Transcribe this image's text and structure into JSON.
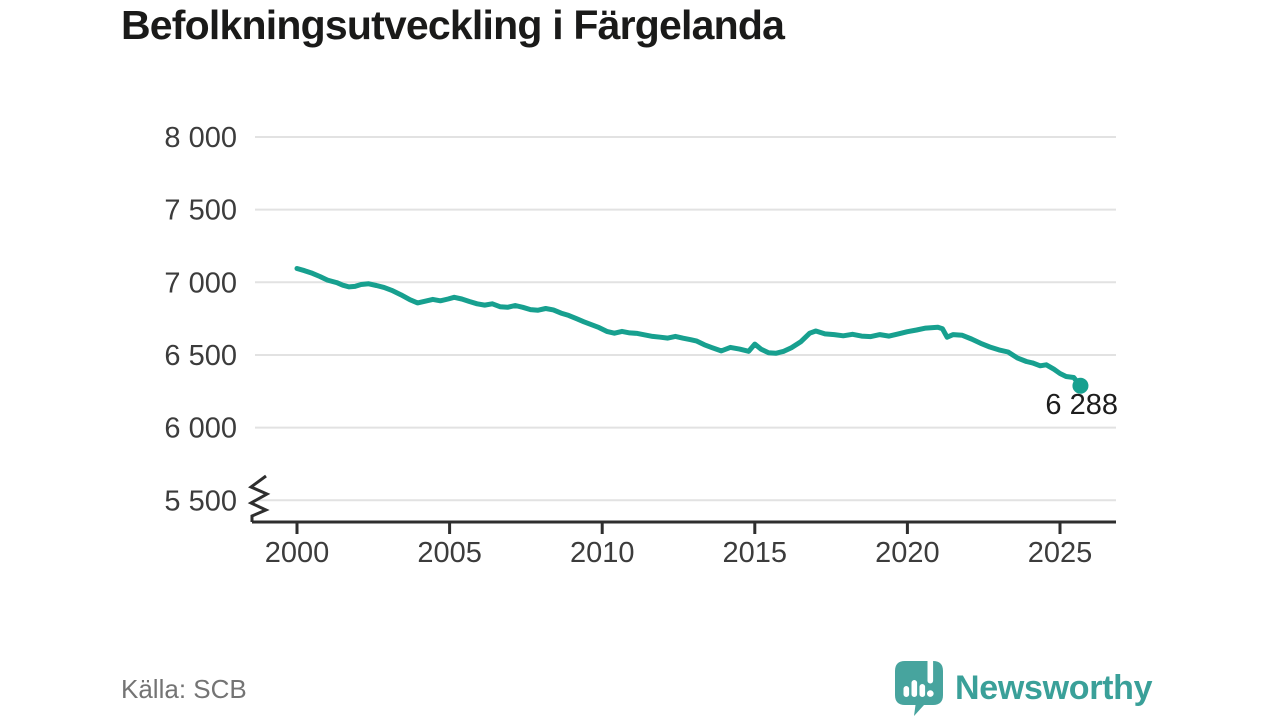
{
  "header": {
    "title": "Befolkningsutveckling i Färgelanda"
  },
  "footer": {
    "source": "Källa: SCB",
    "brand": "Newsworthy"
  },
  "colors": {
    "line": "#17a08f",
    "logo_icon": "#47a49e",
    "brand_text": "#3aa099",
    "grid": "#e2e2e2",
    "axis": "#2e2e2e",
    "tick_label": "#3c3c3c",
    "title": "#1a1a19",
    "source_text": "#747474",
    "annotation": "#1d1d1d"
  },
  "chart_data": {
    "type": "line",
    "title": "Befolkningsutveckling i Färgelanda",
    "source": "Källa: SCB",
    "x_unit": "year",
    "y_unit": "population",
    "ylim": [
      5500,
      8000
    ],
    "xlim": [
      1998.5,
      2027
    ],
    "grid": "horizontal",
    "axis_break_at_bottom": true,
    "legend": "none",
    "yticks": [
      {
        "v": 8000,
        "label": "8 000"
      },
      {
        "v": 7500,
        "label": "7 500"
      },
      {
        "v": 7000,
        "label": "7 000"
      },
      {
        "v": 6500,
        "label": "6 500"
      },
      {
        "v": 6000,
        "label": "6 000"
      },
      {
        "v": 5500,
        "label": "5 500"
      }
    ],
    "xticks": [
      {
        "v": 2000,
        "label": "2000"
      },
      {
        "v": 2005,
        "label": "2005"
      },
      {
        "v": 2010,
        "label": "2010"
      },
      {
        "v": 2015,
        "label": "2015"
      },
      {
        "v": 2020,
        "label": "2020"
      },
      {
        "v": 2025,
        "label": "2025"
      }
    ],
    "last_value_label": "6 288",
    "last_point": {
      "x": 2025.67,
      "y": 6288
    },
    "series": [
      {
        "name": "Befolkning",
        "points": [
          [
            2000.0,
            7095
          ],
          [
            2000.25,
            7080
          ],
          [
            2000.5,
            7062
          ],
          [
            2000.75,
            7040
          ],
          [
            2001.0,
            7015
          ],
          [
            2001.3,
            6998
          ],
          [
            2001.5,
            6980
          ],
          [
            2001.7,
            6968
          ],
          [
            2001.9,
            6972
          ],
          [
            2002.1,
            6985
          ],
          [
            2002.35,
            6990
          ],
          [
            2002.6,
            6978
          ],
          [
            2002.85,
            6965
          ],
          [
            2003.1,
            6945
          ],
          [
            2003.4,
            6915
          ],
          [
            2003.7,
            6880
          ],
          [
            2003.95,
            6858
          ],
          [
            2004.2,
            6870
          ],
          [
            2004.45,
            6882
          ],
          [
            2004.7,
            6873
          ],
          [
            2004.95,
            6885
          ],
          [
            2005.15,
            6897
          ],
          [
            2005.4,
            6885
          ],
          [
            2005.65,
            6868
          ],
          [
            2005.9,
            6852
          ],
          [
            2006.15,
            6843
          ],
          [
            2006.4,
            6852
          ],
          [
            2006.65,
            6832
          ],
          [
            2006.9,
            6828
          ],
          [
            2007.15,
            6840
          ],
          [
            2007.4,
            6828
          ],
          [
            2007.65,
            6812
          ],
          [
            2007.9,
            6808
          ],
          [
            2008.15,
            6820
          ],
          [
            2008.4,
            6810
          ],
          [
            2008.65,
            6788
          ],
          [
            2008.9,
            6772
          ],
          [
            2009.15,
            6750
          ],
          [
            2009.4,
            6728
          ],
          [
            2009.65,
            6708
          ],
          [
            2009.9,
            6688
          ],
          [
            2010.15,
            6662
          ],
          [
            2010.4,
            6650
          ],
          [
            2010.65,
            6662
          ],
          [
            2010.9,
            6652
          ],
          [
            2011.15,
            6648
          ],
          [
            2011.4,
            6638
          ],
          [
            2011.65,
            6628
          ],
          [
            2011.9,
            6622
          ],
          [
            2012.15,
            6616
          ],
          [
            2012.4,
            6628
          ],
          [
            2012.65,
            6615
          ],
          [
            2012.9,
            6605
          ],
          [
            2013.1,
            6595
          ],
          [
            2013.35,
            6570
          ],
          [
            2013.6,
            6550
          ],
          [
            2013.9,
            6528
          ],
          [
            2014.2,
            6552
          ],
          [
            2014.5,
            6540
          ],
          [
            2014.8,
            6525
          ],
          [
            2015.0,
            6575
          ],
          [
            2015.2,
            6540
          ],
          [
            2015.45,
            6515
          ],
          [
            2015.7,
            6512
          ],
          [
            2015.95,
            6525
          ],
          [
            2016.2,
            6550
          ],
          [
            2016.5,
            6590
          ],
          [
            2016.8,
            6650
          ],
          [
            2017.0,
            6665
          ],
          [
            2017.3,
            6645
          ],
          [
            2017.6,
            6640
          ],
          [
            2017.9,
            6632
          ],
          [
            2018.2,
            6642
          ],
          [
            2018.5,
            6630
          ],
          [
            2018.8,
            6626
          ],
          [
            2019.1,
            6640
          ],
          [
            2019.4,
            6630
          ],
          [
            2019.7,
            6645
          ],
          [
            2020.0,
            6660
          ],
          [
            2020.3,
            6672
          ],
          [
            2020.6,
            6685
          ],
          [
            2021.0,
            6690
          ],
          [
            2021.15,
            6680
          ],
          [
            2021.3,
            6622
          ],
          [
            2021.5,
            6640
          ],
          [
            2021.8,
            6635
          ],
          [
            2022.1,
            6610
          ],
          [
            2022.4,
            6580
          ],
          [
            2022.7,
            6555
          ],
          [
            2023.0,
            6535
          ],
          [
            2023.3,
            6520
          ],
          [
            2023.6,
            6480
          ],
          [
            2023.9,
            6455
          ],
          [
            2024.1,
            6445
          ],
          [
            2024.35,
            6425
          ],
          [
            2024.55,
            6432
          ],
          [
            2024.8,
            6402
          ],
          [
            2025.0,
            6372
          ],
          [
            2025.2,
            6352
          ],
          [
            2025.45,
            6345
          ],
          [
            2025.67,
            6288
          ]
        ]
      }
    ]
  }
}
